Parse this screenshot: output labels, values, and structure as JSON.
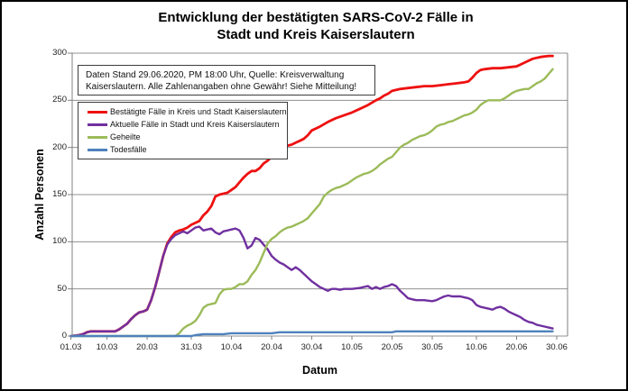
{
  "title": {
    "line1": "Entwicklung der bestätigten SARS-CoV-2 Fälle in",
    "line2": "Stadt und Kreis Kaiserslautern"
  },
  "note_box": {
    "line1": "Daten Stand 29.06.2020, PM 18:00 Uhr, Quelle: Kreisverwaltung",
    "line2": "Kaiserslautern. Alle Zahlenangaben ohne Gewähr! Siehe Mitteilung!"
  },
  "chart_data": {
    "type": "line",
    "title": "Entwicklung der bestätigten SARS-CoV-2 Fälle in Stadt und Kreis Kaiserslautern",
    "xlabel": "Datum",
    "ylabel": "Anzahl Personen",
    "ylim": [
      0,
      300
    ],
    "y_ticks": [
      0,
      50,
      100,
      150,
      200,
      250,
      300
    ],
    "x_axis_unit": "days since 01.03.2020",
    "x_range_days": [
      0,
      121
    ],
    "x_ticks": [
      {
        "label": "01.03",
        "day": 0
      },
      {
        "label": "10.03",
        "day": 9
      },
      {
        "label": "20.03",
        "day": 19
      },
      {
        "label": "31.03",
        "day": 30
      },
      {
        "label": "10.04",
        "day": 40
      },
      {
        "label": "20.04",
        "day": 50
      },
      {
        "label": "30.04",
        "day": 60
      },
      {
        "label": "10.05",
        "day": 70
      },
      {
        "label": "20.05",
        "day": 80
      },
      {
        "label": "30.05",
        "day": 90
      },
      {
        "label": "10.06",
        "day": 101
      },
      {
        "label": "20.06",
        "day": 111
      },
      {
        "label": "30.06",
        "day": 121
      }
    ],
    "grid": "horizontal",
    "legend_position": "inside-top-left",
    "colors": {
      "grid": "#909090",
      "axis": "#808080",
      "box_border": "#3c3c3c"
    },
    "series": [
      {
        "name": "Bestätigte Fälle in Kreis und Stadt Kaiserslautern",
        "color": "#ee1111",
        "points": [
          [
            0,
            0
          ],
          [
            2,
            1
          ],
          [
            3,
            2
          ],
          [
            4,
            4
          ],
          [
            5,
            5
          ],
          [
            9,
            5
          ],
          [
            11,
            5
          ],
          [
            12,
            7
          ],
          [
            13,
            10
          ],
          [
            14,
            13
          ],
          [
            15,
            18
          ],
          [
            16,
            22
          ],
          [
            17,
            25
          ],
          [
            18,
            26
          ],
          [
            19,
            28
          ],
          [
            20,
            38
          ],
          [
            21,
            52
          ],
          [
            22,
            68
          ],
          [
            23,
            85
          ],
          [
            24,
            98
          ],
          [
            25,
            105
          ],
          [
            26,
            110
          ],
          [
            27,
            112
          ],
          [
            28,
            113
          ],
          [
            29,
            115
          ],
          [
            30,
            118
          ],
          [
            31,
            120
          ],
          [
            32,
            122
          ],
          [
            33,
            128
          ],
          [
            34,
            132
          ],
          [
            35,
            138
          ],
          [
            36,
            148
          ],
          [
            37,
            150
          ],
          [
            38,
            151
          ],
          [
            39,
            152
          ],
          [
            40,
            155
          ],
          [
            41,
            158
          ],
          [
            42,
            163
          ],
          [
            43,
            168
          ],
          [
            44,
            172
          ],
          [
            45,
            175
          ],
          [
            46,
            175
          ],
          [
            47,
            178
          ],
          [
            48,
            183
          ],
          [
            49,
            186
          ],
          [
            50,
            190
          ],
          [
            51,
            193
          ],
          [
            52,
            196
          ],
          [
            53,
            200
          ],
          [
            54,
            202
          ],
          [
            55,
            203
          ],
          [
            56,
            205
          ],
          [
            57,
            207
          ],
          [
            58,
            209
          ],
          [
            59,
            213
          ],
          [
            60,
            218
          ],
          [
            62,
            222
          ],
          [
            64,
            227
          ],
          [
            66,
            231
          ],
          [
            68,
            234
          ],
          [
            70,
            237
          ],
          [
            72,
            241
          ],
          [
            74,
            245
          ],
          [
            76,
            250
          ],
          [
            77,
            252
          ],
          [
            78,
            255
          ],
          [
            79,
            257
          ],
          [
            80,
            260
          ],
          [
            82,
            262
          ],
          [
            84,
            263
          ],
          [
            86,
            264
          ],
          [
            88,
            265
          ],
          [
            90,
            265
          ],
          [
            92,
            266
          ],
          [
            94,
            267
          ],
          [
            96,
            268
          ],
          [
            98,
            269
          ],
          [
            99,
            270
          ],
          [
            100,
            274
          ],
          [
            101,
            279
          ],
          [
            102,
            282
          ],
          [
            103,
            283
          ],
          [
            105,
            284
          ],
          [
            107,
            284
          ],
          [
            109,
            285
          ],
          [
            111,
            286
          ],
          [
            112,
            288
          ],
          [
            113,
            290
          ],
          [
            114,
            292
          ],
          [
            115,
            294
          ],
          [
            116,
            295
          ],
          [
            117,
            296
          ],
          [
            119,
            297
          ],
          [
            120,
            297
          ]
        ]
      },
      {
        "name": "Aktuelle Fälle in Stadt und Kreis Kaiserslautern",
        "color": "#7030a0",
        "points": [
          [
            0,
            0
          ],
          [
            2,
            1
          ],
          [
            3,
            2
          ],
          [
            4,
            4
          ],
          [
            5,
            5
          ],
          [
            9,
            5
          ],
          [
            11,
            5
          ],
          [
            12,
            7
          ],
          [
            13,
            10
          ],
          [
            14,
            13
          ],
          [
            15,
            18
          ],
          [
            16,
            22
          ],
          [
            17,
            25
          ],
          [
            18,
            26
          ],
          [
            19,
            28
          ],
          [
            20,
            38
          ],
          [
            21,
            52
          ],
          [
            22,
            68
          ],
          [
            23,
            85
          ],
          [
            24,
            97
          ],
          [
            25,
            103
          ],
          [
            26,
            107
          ],
          [
            27,
            109
          ],
          [
            28,
            111
          ],
          [
            29,
            109
          ],
          [
            30,
            112
          ],
          [
            31,
            115
          ],
          [
            32,
            116
          ],
          [
            33,
            112
          ],
          [
            34,
            113
          ],
          [
            35,
            114
          ],
          [
            36,
            110
          ],
          [
            37,
            108
          ],
          [
            38,
            111
          ],
          [
            39,
            112
          ],
          [
            40,
            113
          ],
          [
            41,
            114
          ],
          [
            42,
            112
          ],
          [
            43,
            104
          ],
          [
            44,
            93
          ],
          [
            45,
            96
          ],
          [
            46,
            104
          ],
          [
            47,
            102
          ],
          [
            48,
            97
          ],
          [
            49,
            92
          ],
          [
            50,
            85
          ],
          [
            51,
            81
          ],
          [
            52,
            78
          ],
          [
            53,
            76
          ],
          [
            54,
            73
          ],
          [
            55,
            70
          ],
          [
            56,
            73
          ],
          [
            57,
            70
          ],
          [
            58,
            66
          ],
          [
            59,
            62
          ],
          [
            60,
            58
          ],
          [
            61,
            55
          ],
          [
            62,
            52
          ],
          [
            63,
            50
          ],
          [
            64,
            48
          ],
          [
            65,
            50
          ],
          [
            66,
            50
          ],
          [
            67,
            49
          ],
          [
            68,
            50
          ],
          [
            69,
            50
          ],
          [
            70,
            50
          ],
          [
            72,
            51
          ],
          [
            74,
            53
          ],
          [
            75,
            50
          ],
          [
            76,
            52
          ],
          [
            77,
            50
          ],
          [
            78,
            52
          ],
          [
            79,
            53
          ],
          [
            80,
            55
          ],
          [
            81,
            53
          ],
          [
            82,
            48
          ],
          [
            83,
            44
          ],
          [
            84,
            40
          ],
          [
            85,
            39
          ],
          [
            86,
            38
          ],
          [
            88,
            38
          ],
          [
            90,
            37
          ],
          [
            91,
            38
          ],
          [
            92,
            40
          ],
          [
            93,
            42
          ],
          [
            94,
            43
          ],
          [
            95,
            42
          ],
          [
            97,
            42
          ],
          [
            98,
            41
          ],
          [
            99,
            40
          ],
          [
            100,
            38
          ],
          [
            101,
            33
          ],
          [
            102,
            31
          ],
          [
            103,
            30
          ],
          [
            104,
            29
          ],
          [
            105,
            28
          ],
          [
            106,
            30
          ],
          [
            107,
            31
          ],
          [
            108,
            29
          ],
          [
            109,
            26
          ],
          [
            110,
            24
          ],
          [
            111,
            22
          ],
          [
            112,
            20
          ],
          [
            113,
            17
          ],
          [
            114,
            15
          ],
          [
            115,
            14
          ],
          [
            116,
            12
          ],
          [
            117,
            11
          ],
          [
            118,
            10
          ],
          [
            119,
            9
          ],
          [
            120,
            8
          ]
        ]
      },
      {
        "name": "Geheilte",
        "color": "#9bbb59",
        "points": [
          [
            0,
            0
          ],
          [
            26,
            0
          ],
          [
            27,
            3
          ],
          [
            28,
            8
          ],
          [
            29,
            11
          ],
          [
            30,
            13
          ],
          [
            31,
            16
          ],
          [
            32,
            22
          ],
          [
            33,
            30
          ],
          [
            34,
            33
          ],
          [
            35,
            34
          ],
          [
            36,
            35
          ],
          [
            37,
            44
          ],
          [
            38,
            49
          ],
          [
            39,
            50
          ],
          [
            40,
            50
          ],
          [
            41,
            52
          ],
          [
            42,
            55
          ],
          [
            43,
            55
          ],
          [
            44,
            58
          ],
          [
            45,
            65
          ],
          [
            46,
            70
          ],
          [
            47,
            78
          ],
          [
            48,
            88
          ],
          [
            49,
            98
          ],
          [
            50,
            103
          ],
          [
            51,
            106
          ],
          [
            52,
            110
          ],
          [
            53,
            113
          ],
          [
            54,
            115
          ],
          [
            55,
            116
          ],
          [
            56,
            118
          ],
          [
            57,
            120
          ],
          [
            58,
            122
          ],
          [
            59,
            125
          ],
          [
            60,
            130
          ],
          [
            61,
            135
          ],
          [
            62,
            140
          ],
          [
            63,
            148
          ],
          [
            64,
            152
          ],
          [
            65,
            155
          ],
          [
            66,
            157
          ],
          [
            67,
            158
          ],
          [
            68,
            160
          ],
          [
            69,
            162
          ],
          [
            70,
            165
          ],
          [
            71,
            168
          ],
          [
            72,
            170
          ],
          [
            73,
            172
          ],
          [
            74,
            173
          ],
          [
            75,
            175
          ],
          [
            76,
            178
          ],
          [
            77,
            182
          ],
          [
            78,
            185
          ],
          [
            79,
            188
          ],
          [
            80,
            190
          ],
          [
            81,
            195
          ],
          [
            82,
            200
          ],
          [
            83,
            203
          ],
          [
            84,
            205
          ],
          [
            85,
            208
          ],
          [
            86,
            210
          ],
          [
            87,
            212
          ],
          [
            88,
            213
          ],
          [
            89,
            215
          ],
          [
            90,
            218
          ],
          [
            91,
            222
          ],
          [
            92,
            224
          ],
          [
            93,
            225
          ],
          [
            94,
            227
          ],
          [
            95,
            228
          ],
          [
            96,
            230
          ],
          [
            97,
            232
          ],
          [
            98,
            234
          ],
          [
            99,
            235
          ],
          [
            100,
            237
          ],
          [
            101,
            240
          ],
          [
            102,
            245
          ],
          [
            103,
            248
          ],
          [
            104,
            250
          ],
          [
            106,
            250
          ],
          [
            107,
            250
          ],
          [
            108,
            252
          ],
          [
            109,
            255
          ],
          [
            110,
            258
          ],
          [
            111,
            260
          ],
          [
            112,
            261
          ],
          [
            113,
            262
          ],
          [
            114,
            262
          ],
          [
            115,
            265
          ],
          [
            116,
            268
          ],
          [
            117,
            270
          ],
          [
            118,
            273
          ],
          [
            119,
            278
          ],
          [
            120,
            283
          ]
        ]
      },
      {
        "name": "Todesfälle",
        "color": "#4f81bd",
        "points": [
          [
            0,
            0
          ],
          [
            30,
            0
          ],
          [
            31,
            1
          ],
          [
            33,
            2
          ],
          [
            38,
            2
          ],
          [
            40,
            3
          ],
          [
            50,
            3
          ],
          [
            52,
            4
          ],
          [
            80,
            4
          ],
          [
            81,
            5
          ],
          [
            120,
            5
          ]
        ]
      }
    ]
  }
}
